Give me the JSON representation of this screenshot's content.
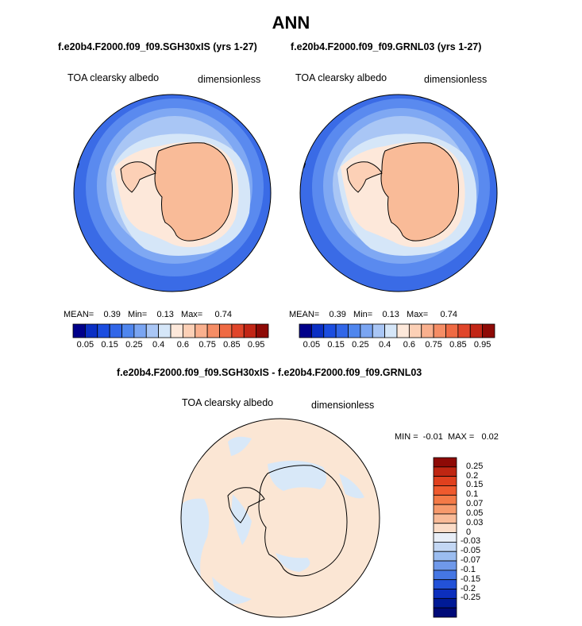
{
  "main_title": "ANN",
  "panels": [
    {
      "case_title": "f.e20b4.F2000.f09_f09.SGH30xIS (yrs 1-27)",
      "variable": "TOA clearsky albedo",
      "units": "dimensionless",
      "stats": {
        "mean_label": "MEAN=",
        "mean": "0.39",
        "min_label": "Min=",
        "min": "0.13",
        "max_label": "Max=",
        "max": "0.74"
      }
    },
    {
      "case_title": "f.e20b4.F2000.f09_f09.GRNL03 (yrs 1-27)",
      "variable": "TOA clearsky albedo",
      "units": "dimensionless",
      "stats": {
        "mean_label": "MEAN=",
        "mean": "0.39",
        "min_label": "Min=",
        "min": "0.13",
        "max_label": "Max=",
        "max": "0.74"
      }
    }
  ],
  "abs_colorbar": {
    "colors": [
      "#00008a",
      "#0a2fc4",
      "#1b4de0",
      "#3166e8",
      "#4f86ee",
      "#7aa5f2",
      "#a9c6f5",
      "#d5e6f8",
      "#fde8da",
      "#fcd0b6",
      "#f9b08e",
      "#f58d65",
      "#ef6a43",
      "#e0452a",
      "#c22616",
      "#8e0a06"
    ],
    "tick_labels": [
      "0.05",
      "0.15",
      "0.25",
      "0.4",
      "0.6",
      "0.75",
      "0.85",
      "0.95"
    ]
  },
  "diff": {
    "title": "f.e20b4.F2000.f09_f09.SGH30xIS - f.e20b4.F2000.f09_f09.GRNL03",
    "variable": "TOA clearsky albedo",
    "units": "dimensionless",
    "stats": {
      "min_label": "MIN =",
      "min": "-0.01",
      "max_label": "MAX =",
      "max": "0.02"
    },
    "colorbar": {
      "colors_top_to_bottom": [
        "#8e0a06",
        "#bf2612",
        "#e0401e",
        "#ef5a2e",
        "#f47a47",
        "#f79a6c",
        "#f9bb98",
        "#fbdcc7",
        "#e8eef7",
        "#c3d7f4",
        "#9bbdf0",
        "#6f99ea",
        "#4576e3",
        "#2352d8",
        "#0c2fbd",
        "#001a96",
        "#000a78"
      ],
      "tick_labels": [
        "0.25",
        "0.2",
        "0.15",
        "0.1",
        "0.07",
        "0.05",
        "0.03",
        "0",
        "-0.03",
        "-0.05",
        "-0.07",
        "-0.1",
        "-0.15",
        "-0.2",
        "-0.25"
      ]
    }
  },
  "chart_data": [
    {
      "type": "heatmap",
      "title": "f.e20b4.F2000.f09_f09.SGH30xIS (yrs 1-27)",
      "variable": "TOA clearsky albedo",
      "units": "dimensionless",
      "projection": "south-polar stereographic",
      "mean": 0.39,
      "min": 0.13,
      "max": 0.74,
      "contour_levels": [
        0.05,
        0.1,
        0.15,
        0.2,
        0.25,
        0.3,
        0.35,
        0.4,
        0.5,
        0.6,
        0.65,
        0.7,
        0.75,
        0.8,
        0.85,
        0.9,
        0.95
      ]
    },
    {
      "type": "heatmap",
      "title": "f.e20b4.F2000.f09_f09.GRNL03 (yrs 1-27)",
      "variable": "TOA clearsky albedo",
      "units": "dimensionless",
      "projection": "south-polar stereographic",
      "mean": 0.39,
      "min": 0.13,
      "max": 0.74,
      "contour_levels": [
        0.05,
        0.1,
        0.15,
        0.2,
        0.25,
        0.3,
        0.35,
        0.4,
        0.5,
        0.6,
        0.65,
        0.7,
        0.75,
        0.8,
        0.85,
        0.9,
        0.95
      ]
    },
    {
      "type": "heatmap",
      "title": "f.e20b4.F2000.f09_f09.SGH30xIS - f.e20b4.F2000.f09_f09.GRNL03",
      "variable": "TOA clearsky albedo",
      "units": "dimensionless",
      "projection": "south-polar stereographic",
      "min": -0.01,
      "max": 0.02,
      "contour_levels": [
        -0.25,
        -0.2,
        -0.15,
        -0.1,
        -0.07,
        -0.05,
        -0.03,
        0,
        0.03,
        0.05,
        0.07,
        0.1,
        0.15,
        0.2,
        0.25
      ]
    }
  ]
}
